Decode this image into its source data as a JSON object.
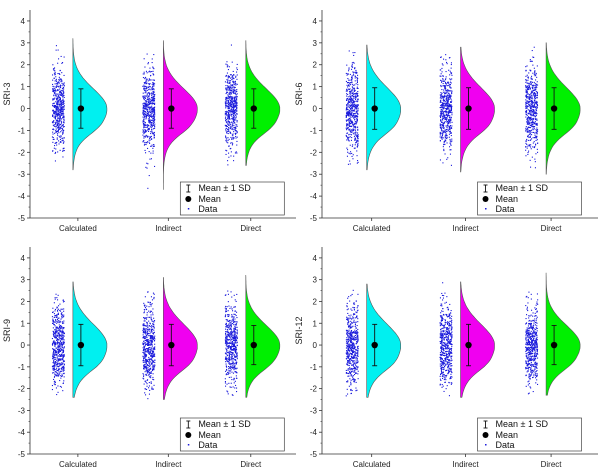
{
  "colors": {
    "points": "#1a1adb",
    "violins": [
      "#00f0f0",
      "#f000f0",
      "#00f000"
    ],
    "outline": "#555555",
    "mean": "#000000"
  },
  "legend": {
    "sd_label": "Mean ± 1 SD",
    "mean_label": "Mean",
    "data_label": "Data",
    "placement": "bottom-center"
  },
  "chart_data": [
    {
      "type": "raincloud",
      "ylabel": "SRI-3",
      "categories": [
        "Calculated",
        "Indirect",
        "Direct"
      ],
      "ylim": [
        -5,
        4.5
      ],
      "yticks": [
        -5,
        -4,
        -3,
        -2,
        -1,
        0,
        1,
        2,
        3,
        4
      ],
      "series": [
        {
          "name": "Calculated",
          "mean": 0.0,
          "sd": 0.9,
          "min": -2.8,
          "max": 3.2
        },
        {
          "name": "Indirect",
          "mean": 0.0,
          "sd": 0.9,
          "min": -3.7,
          "max": 3.1
        },
        {
          "name": "Direct",
          "mean": 0.0,
          "sd": 0.9,
          "min": -2.6,
          "max": 3.1
        }
      ]
    },
    {
      "type": "raincloud",
      "ylabel": "SRI-6",
      "categories": [
        "Calculated",
        "Indirect",
        "Direct"
      ],
      "ylim": [
        -5,
        4.5
      ],
      "yticks": [
        -5,
        -4,
        -3,
        -2,
        -1,
        0,
        1,
        2,
        3,
        4
      ],
      "series": [
        {
          "name": "Calculated",
          "mean": 0.0,
          "sd": 0.95,
          "min": -2.8,
          "max": 2.9
        },
        {
          "name": "Indirect",
          "mean": 0.0,
          "sd": 0.95,
          "min": -2.9,
          "max": 2.8
        },
        {
          "name": "Direct",
          "mean": 0.0,
          "sd": 0.95,
          "min": -3.0,
          "max": 3.0
        }
      ]
    },
    {
      "type": "raincloud",
      "ylabel": "SRI-9",
      "categories": [
        "Calculated",
        "Indirect",
        "Direct"
      ],
      "ylim": [
        -5,
        4.5
      ],
      "yticks": [
        -5,
        -4,
        -3,
        -2,
        -1,
        0,
        1,
        2,
        3,
        4
      ],
      "series": [
        {
          "name": "Calculated",
          "mean": 0.0,
          "sd": 0.95,
          "min": -2.4,
          "max": 2.9
        },
        {
          "name": "Indirect",
          "mean": 0.0,
          "sd": 0.95,
          "min": -2.5,
          "max": 3.1
        },
        {
          "name": "Direct",
          "mean": 0.0,
          "sd": 0.9,
          "min": -2.4,
          "max": 3.2
        }
      ]
    },
    {
      "type": "raincloud",
      "ylabel": "SRI-12",
      "categories": [
        "Calculated",
        "Indirect",
        "Direct"
      ],
      "ylim": [
        -5,
        4.5
      ],
      "yticks": [
        -5,
        -4,
        -3,
        -2,
        -1,
        0,
        1,
        2,
        3,
        4
      ],
      "series": [
        {
          "name": "Calculated",
          "mean": 0.0,
          "sd": 0.95,
          "min": -2.4,
          "max": 2.8
        },
        {
          "name": "Indirect",
          "mean": 0.0,
          "sd": 0.95,
          "min": -2.4,
          "max": 2.9
        },
        {
          "name": "Direct",
          "mean": 0.0,
          "sd": 0.9,
          "min": -2.3,
          "max": 3.3
        }
      ]
    }
  ]
}
